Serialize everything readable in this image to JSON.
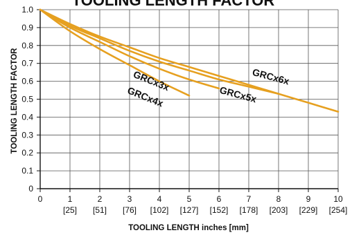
{
  "chart_data": {
    "type": "line",
    "title": "TOOLING LENGTH FACTOR",
    "xlabel": "TOOLING LENGTH inches [mm]",
    "ylabel": "TOOLING LENGTH FACTOR",
    "xlim": [
      0,
      10
    ],
    "ylim": [
      0,
      1.0
    ],
    "grid": true,
    "x_ticks": [
      0,
      1,
      2,
      3,
      4,
      5,
      6,
      7,
      8,
      9,
      10
    ],
    "x_tick_labels": [
      "0",
      "1",
      "2",
      "3",
      "4",
      "5",
      "6",
      "7",
      "8",
      "9",
      "10"
    ],
    "x_tick_sublabels": [
      "",
      "[25]",
      "[51]",
      "[76]",
      "[102]",
      "[127]",
      "[152]",
      "[178]",
      "[203]",
      "[229]",
      "[254]"
    ],
    "y_ticks": [
      0,
      0.1,
      0.2,
      0.3,
      0.4,
      0.5,
      0.6,
      0.7,
      0.8,
      0.9,
      1.0
    ],
    "y_tick_labels": [
      "0",
      "0.1",
      "0.2",
      "0.3",
      "0.4",
      "0.5",
      "0.6",
      "0.7",
      "0.8",
      "0.9",
      "1.0"
    ],
    "line_color": "#e6a020",
    "series": [
      {
        "name": "GRCx3x",
        "x": [
          0,
          1,
          2,
          3,
          4,
          5
        ],
        "y": [
          1.0,
          0.88,
          0.78,
          0.69,
          0.6,
          0.52
        ]
      },
      {
        "name": "GRCx4x",
        "x": [
          0,
          1,
          2,
          3,
          4,
          5,
          6
        ],
        "y": [
          1.0,
          0.9,
          0.82,
          0.74,
          0.67,
          0.61,
          0.56
        ]
      },
      {
        "name": "GRCx5x",
        "x": [
          0,
          1,
          2,
          3,
          4,
          5,
          6,
          7,
          8
        ],
        "y": [
          1.0,
          0.91,
          0.84,
          0.77,
          0.71,
          0.66,
          0.61,
          0.57,
          0.53
        ]
      },
      {
        "name": "GRCx6x",
        "x": [
          0,
          1,
          2,
          3,
          4,
          5,
          6,
          7,
          8,
          9,
          10
        ],
        "y": [
          1.0,
          0.92,
          0.85,
          0.79,
          0.73,
          0.68,
          0.63,
          0.58,
          0.53,
          0.48,
          0.43
        ]
      }
    ]
  }
}
